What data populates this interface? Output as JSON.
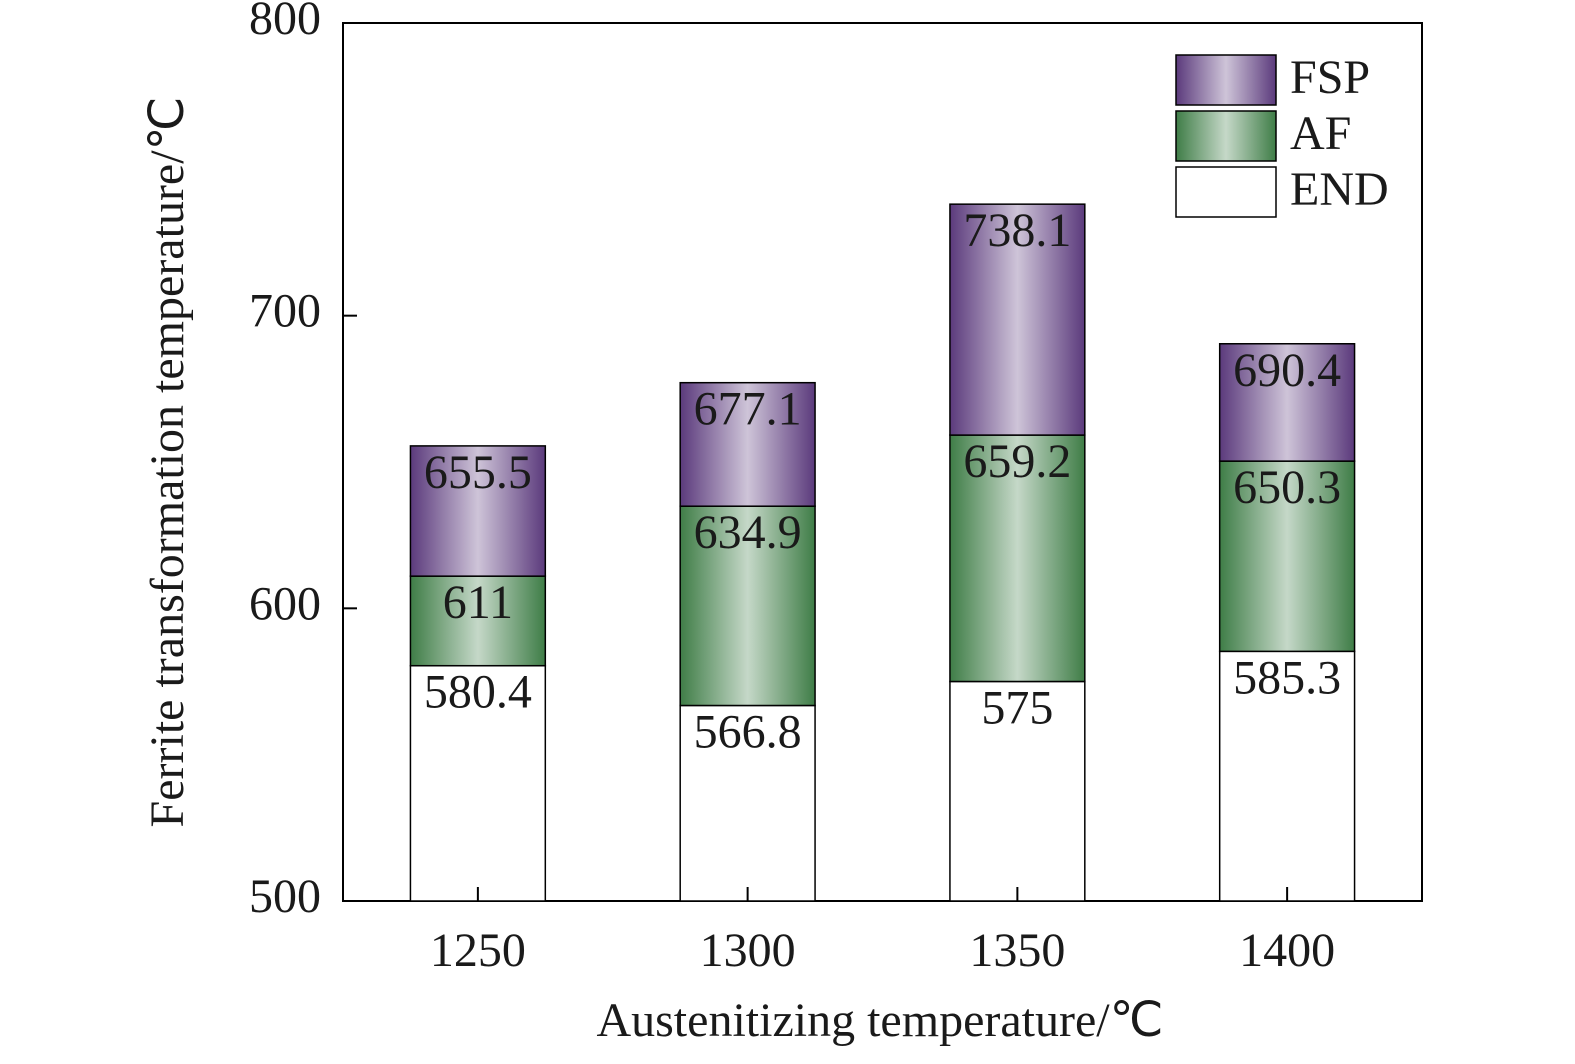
{
  "chart_data": {
    "type": "bar",
    "x_label": "Austenitizing temperature/℃",
    "y_label": "Ferrite transformation temperature/℃",
    "categories": [
      "1250",
      "1300",
      "1350",
      "1400"
    ],
    "series": [
      {
        "name": "END",
        "color": "#ffffff",
        "values": [
          580.4,
          566.8,
          575,
          585.3
        ]
      },
      {
        "name": "AF",
        "color": "#3f7d47",
        "values": [
          611,
          634.9,
          659.2,
          650.3
        ]
      },
      {
        "name": "FSP",
        "color": "#5b3a7c",
        "values": [
          655.5,
          677.1,
          738.1,
          690.4
        ]
      }
    ],
    "ylim": [
      500,
      800
    ],
    "yticks": [
      500,
      600,
      700,
      800
    ],
    "legend": "upper right"
  }
}
